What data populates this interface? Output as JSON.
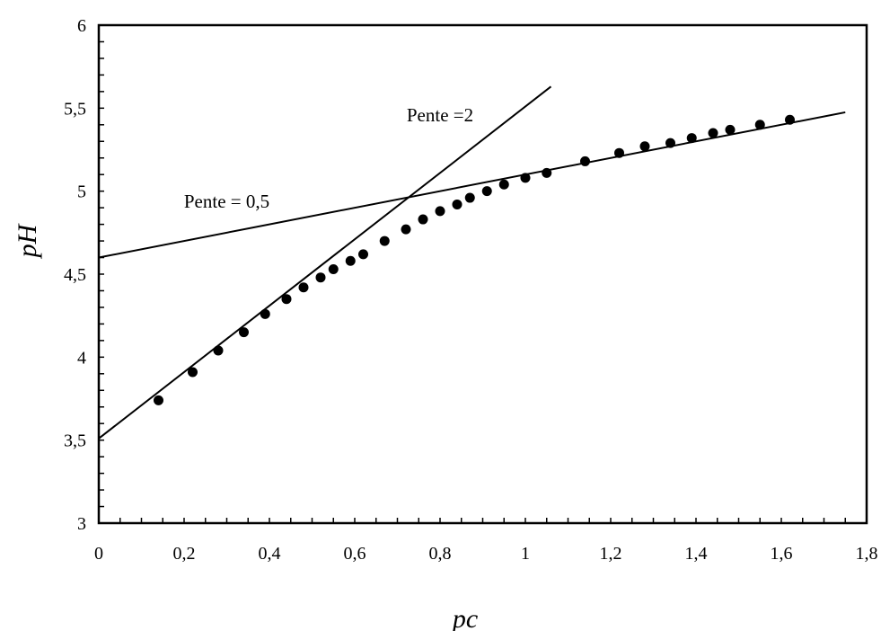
{
  "chart_data": {
    "type": "scatter",
    "title": "",
    "xlabel": "pc",
    "ylabel": "pH",
    "xlim": [
      0,
      1.8
    ],
    "ylim": [
      3,
      6
    ],
    "x_ticks": [
      "0",
      "0,2",
      "0,4",
      "0,6",
      "0,8",
      "1",
      "1,2",
      "1,4",
      "1,6",
      "1,8"
    ],
    "y_ticks": [
      "3",
      "3,5",
      "4",
      "4,5",
      "5",
      "5,5",
      "6"
    ],
    "grid": false,
    "legend": "none",
    "colors": {
      "points": "#000000",
      "lines": "#000000",
      "frame": "#000000"
    },
    "series": [
      {
        "points": [
          [
            0.14,
            3.74
          ],
          [
            0.22,
            3.91
          ],
          [
            0.28,
            4.04
          ],
          [
            0.34,
            4.15
          ],
          [
            0.39,
            4.26
          ],
          [
            0.44,
            4.35
          ],
          [
            0.48,
            4.42
          ],
          [
            0.52,
            4.48
          ],
          [
            0.55,
            4.53
          ],
          [
            0.59,
            4.58
          ],
          [
            0.62,
            4.62
          ],
          [
            0.67,
            4.7
          ],
          [
            0.72,
            4.77
          ],
          [
            0.76,
            4.83
          ],
          [
            0.8,
            4.88
          ],
          [
            0.84,
            4.92
          ],
          [
            0.87,
            4.96
          ],
          [
            0.91,
            5.0
          ],
          [
            0.95,
            5.04
          ],
          [
            1.0,
            5.08
          ],
          [
            1.05,
            5.11
          ],
          [
            1.14,
            5.18
          ],
          [
            1.22,
            5.23
          ],
          [
            1.28,
            5.27
          ],
          [
            1.34,
            5.29
          ],
          [
            1.39,
            5.32
          ],
          [
            1.44,
            5.35
          ],
          [
            1.48,
            5.37
          ],
          [
            1.55,
            5.4
          ],
          [
            1.62,
            5.43
          ]
        ]
      }
    ],
    "lines": [
      {
        "slope": 2,
        "intercept": 3.51,
        "x_range": [
          0,
          1.06
        ]
      },
      {
        "slope": 0.5,
        "intercept": 4.6,
        "x_range": [
          0,
          1.75
        ]
      }
    ],
    "annotations": [
      {
        "text": "Pente =2",
        "x": 0.8,
        "y": 5.42
      },
      {
        "text": "Pente = 0,5",
        "x": 0.3,
        "y": 4.9
      }
    ]
  }
}
